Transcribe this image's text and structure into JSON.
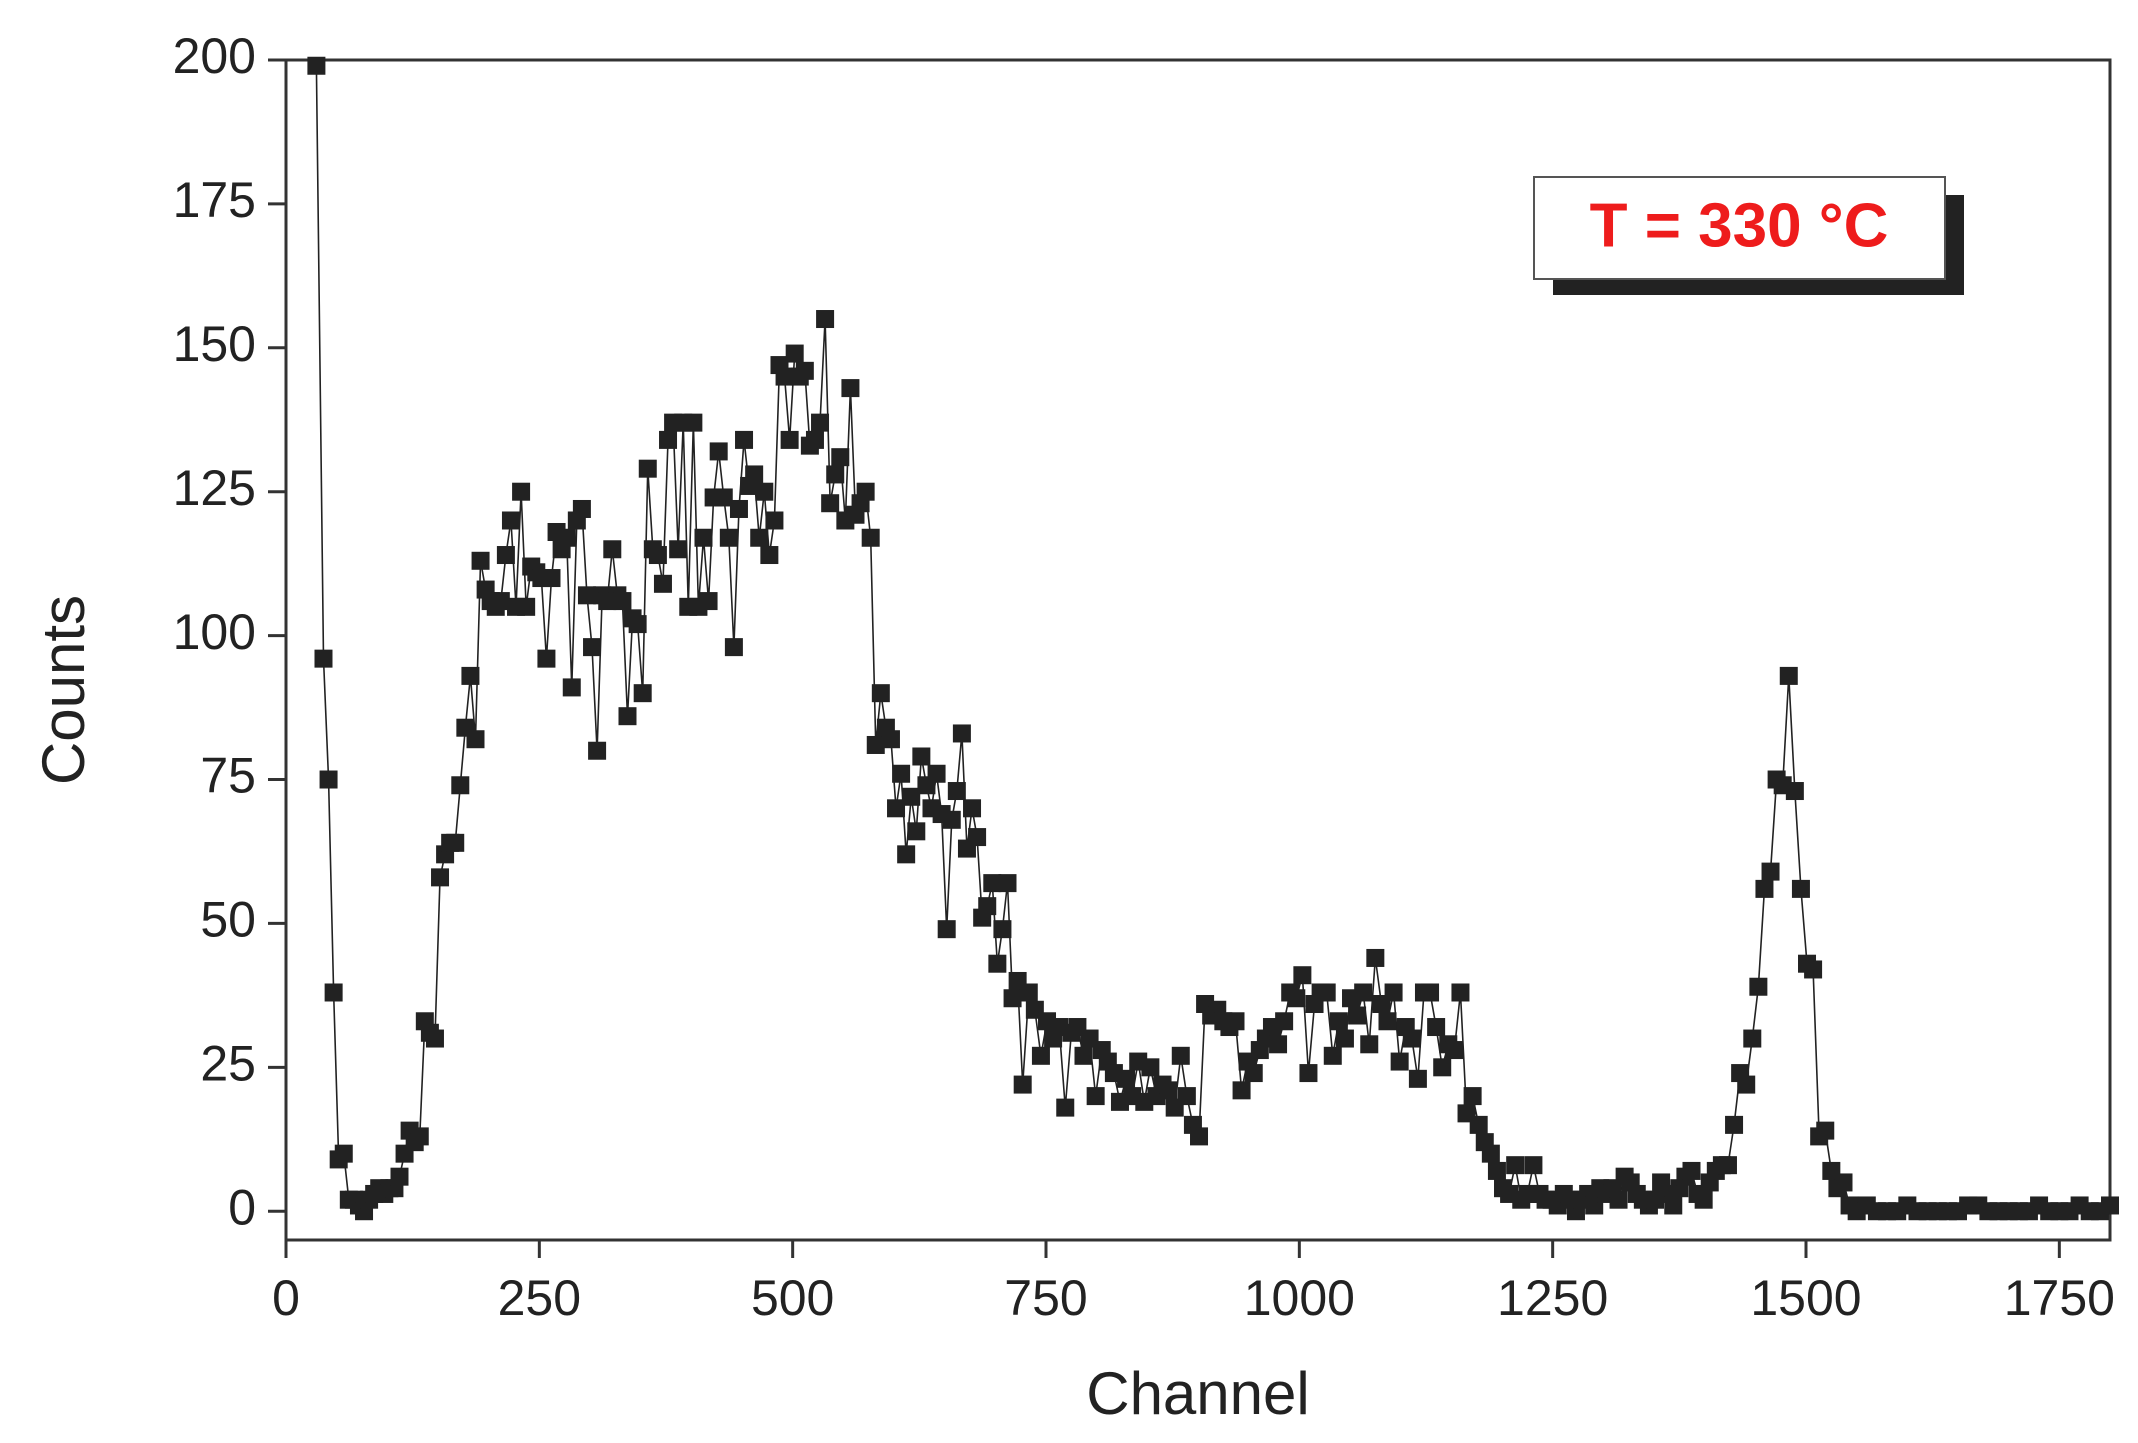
{
  "chart_data": {
    "type": "line",
    "x_label": "Channel",
    "y_label": "Counts",
    "annotation": "T = 330 °C",
    "xlim": [
      0,
      1800
    ],
    "xticks": [
      0,
      250,
      500,
      750,
      1000,
      1250,
      1500,
      1750
    ],
    "ylim": [
      -5,
      200
    ],
    "yticks": [
      0,
      25,
      50,
      75,
      100,
      125,
      150,
      175,
      200
    ],
    "grid": false,
    "marker": "square",
    "series": [
      {
        "color": "#222222",
        "x": [
          30,
          37,
          42,
          47,
          52,
          57,
          62,
          67,
          72,
          77,
          82,
          87,
          92,
          97,
          102,
          107,
          112,
          117,
          122,
          127,
          132,
          137,
          142,
          147,
          152,
          157,
          162,
          167,
          172,
          177,
          182,
          187,
          192,
          197,
          202,
          207,
          212,
          217,
          222,
          227,
          232,
          237,
          242,
          247,
          252,
          257,
          262,
          267,
          272,
          277,
          282,
          287,
          292,
          297,
          302,
          307,
          312,
          317,
          322,
          327,
          332,
          337,
          342,
          347,
          352,
          357,
          362,
          367,
          372,
          377,
          382,
          387,
          392,
          397,
          402,
          407,
          412,
          417,
          422,
          427,
          432,
          437,
          442,
          447,
          452,
          457,
          462,
          467,
          472,
          477,
          482,
          487,
          492,
          497,
          502,
          507,
          512,
          517,
          522,
          527,
          532,
          537,
          542,
          547,
          552,
          557,
          562,
          567,
          572,
          577,
          582,
          587,
          592,
          597,
          602,
          607,
          612,
          617,
          622,
          627,
          632,
          637,
          642,
          647,
          652,
          657,
          662,
          667,
          672,
          677,
          682,
          687,
          692,
          697,
          702,
          707,
          712,
          717,
          722,
          727,
          733,
          739,
          745,
          751,
          757,
          763,
          769,
          775,
          781,
          787,
          793,
          799,
          805,
          811,
          817,
          823,
          829,
          835,
          841,
          847,
          853,
          859,
          865,
          871,
          877,
          883,
          889,
          895,
          901,
          907,
          913,
          919,
          925,
          931,
          937,
          943,
          949,
          955,
          961,
          967,
          973,
          979,
          985,
          991,
          997,
          1003,
          1009,
          1015,
          1021,
          1027,
          1033,
          1039,
          1045,
          1051,
          1057,
          1063,
          1069,
          1075,
          1081,
          1087,
          1093,
          1099,
          1105,
          1111,
          1117,
          1123,
          1129,
          1135,
          1141,
          1147,
          1153,
          1159,
          1165,
          1171,
          1177,
          1183,
          1189,
          1195,
          1201,
          1207,
          1213,
          1219,
          1225,
          1231,
          1237,
          1243,
          1249,
          1255,
          1261,
          1267,
          1273,
          1279,
          1285,
          1291,
          1297,
          1303,
          1309,
          1315,
          1321,
          1327,
          1333,
          1339,
          1345,
          1351,
          1357,
          1363,
          1369,
          1375,
          1381,
          1387,
          1393,
          1399,
          1405,
          1411,
          1417,
          1423,
          1429,
          1435,
          1441,
          1447,
          1453,
          1459,
          1465,
          1471,
          1477,
          1483,
          1489,
          1495,
          1501,
          1507,
          1513,
          1519,
          1525,
          1531,
          1537,
          1543,
          1550,
          1560,
          1570,
          1580,
          1590,
          1600,
          1610,
          1620,
          1630,
          1640,
          1650,
          1660,
          1670,
          1680,
          1690,
          1700,
          1710,
          1720,
          1730,
          1740,
          1750,
          1760,
          1770,
          1780,
          1790,
          1800
        ],
        "values": [
          199,
          96,
          75,
          38,
          9,
          10,
          2,
          2,
          1,
          0,
          2,
          3,
          4,
          3,
          4,
          4,
          6,
          10,
          14,
          12,
          13,
          33,
          31,
          30,
          58,
          62,
          64,
          64,
          74,
          84,
          93,
          82,
          113,
          108,
          106,
          105,
          106,
          114,
          120,
          105,
          125,
          105,
          112,
          111,
          110,
          96,
          110,
          118,
          115,
          117,
          91,
          120,
          122,
          107,
          98,
          80,
          107,
          106,
          115,
          107,
          106,
          86,
          103,
          102,
          90,
          129,
          115,
          114,
          109,
          134,
          137,
          115,
          137,
          105,
          137,
          105,
          117,
          106,
          124,
          132,
          124,
          117,
          98,
          122,
          134,
          126,
          128,
          117,
          125,
          114,
          120,
          147,
          145,
          134,
          149,
          145,
          146,
          133,
          134,
          137,
          155,
          123,
          128,
          131,
          120,
          143,
          121,
          123,
          125,
          117,
          81,
          90,
          84,
          82,
          70,
          76,
          62,
          72,
          66,
          79,
          74,
          70,
          76,
          69,
          49,
          68,
          73,
          83,
          63,
          70,
          65,
          51,
          53,
          57,
          43,
          49,
          57,
          37,
          40,
          22,
          38,
          35,
          27,
          33,
          30,
          32,
          18,
          31,
          32,
          27,
          30,
          20,
          28,
          26,
          24,
          19,
          23,
          20,
          26,
          19,
          25,
          20,
          22,
          21,
          18,
          27,
          20,
          15,
          13,
          36,
          34,
          35,
          33,
          32,
          33,
          21,
          26,
          24,
          28,
          30,
          32,
          29,
          33,
          38,
          37,
          41,
          24,
          36,
          38,
          38,
          27,
          33,
          30,
          37,
          34,
          38,
          29,
          44,
          36,
          33,
          38,
          26,
          32,
          30,
          23,
          38,
          38,
          32,
          25,
          29,
          28,
          38,
          17,
          20,
          15,
          12,
          10,
          7,
          4,
          3,
          8,
          2,
          3,
          8,
          3,
          2,
          2,
          1,
          3,
          2,
          0,
          2,
          3,
          1,
          4,
          3,
          4,
          2,
          6,
          5,
          3,
          2,
          1,
          2,
          5,
          3,
          1,
          4,
          6,
          7,
          3,
          2,
          5,
          7,
          8,
          8,
          15,
          24,
          22,
          30,
          39,
          56,
          59,
          75,
          74,
          93,
          73,
          56,
          43,
          42,
          13,
          14,
          7,
          4,
          5,
          1,
          0,
          1,
          0,
          0,
          0,
          1,
          0,
          0,
          0,
          0,
          0,
          1,
          1,
          0,
          0,
          0,
          0,
          0,
          1,
          0,
          0,
          0,
          1,
          0,
          0,
          1
        ]
      }
    ]
  }
}
